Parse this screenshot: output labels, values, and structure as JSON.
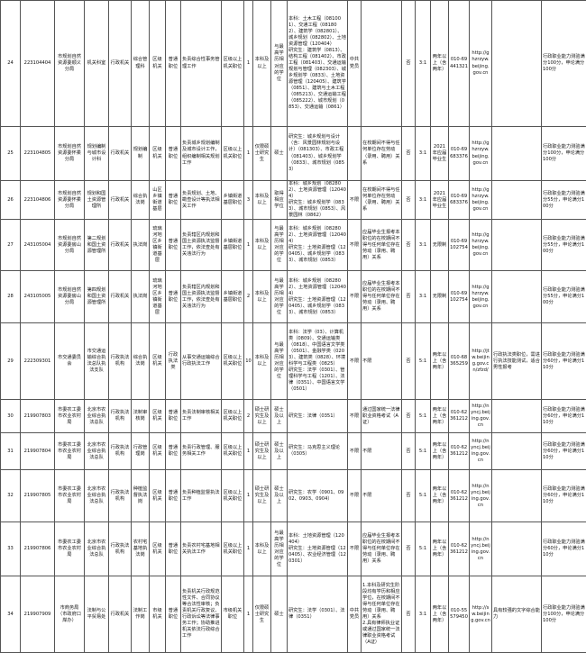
{
  "table": {
    "rows": [
      [
        "24",
        "223104404",
        "市规划自然资源委顺义分局",
        "机关科室",
        "行政机关",
        "综合管理科",
        "区级机关",
        "普通职位",
        "负责综合性事务管理工作",
        "区级以上机关职位",
        "1",
        "本科及以上",
        "与最高学历相对应的学位",
        "本科：土木工程（081001）、交通工程（081802）、建筑学（082801）、城乡规划（082802）、土地资源管理（120404）\n研究生：建筑学（0813）、结构工程（081402）、市政工程（081403）、交通运输规划与管理（082303）、城乡规划学（0833）、土地资源管理（120405）、建筑学（0851）、建筑与土木工程（085213）、交通运输工程（085222）、城市规划（0853）、交通运输（0861）",
        "中共党员",
        "",
        "否",
        "3:1",
        "两年以上（含两年）",
        "010-69441321",
        "http://ghzrzyw.beijing.gov.cn",
        "",
        "行政职业能力测验满分100分，申论满分100分"
      ],
      [
        "25",
        "223104805",
        "市规划自然资源委怀柔分局",
        "规划编制与城市设计科",
        "行政机关",
        "规划编制",
        "区级机关",
        "普通职位",
        "负责城乡规划编制及城市设计工作，组织编制相关规划工作",
        "区级以上机关职位",
        "1",
        "仅限硕士研究生",
        "硕士",
        "研究生：城乡规划与设计（含：风景园林规划与设计）（081303）、市政工程（081403）、城乡规划学（0833）、城市规划（0853）",
        "",
        "在校期间不得与任何单位存在劳动（录用、聘用）关系",
        "否",
        "3:1",
        "2021年应届毕业生",
        "010-69683376",
        "http://ghzrzyw.beijing.gov.cn",
        "",
        "行政职业能力测验满分100分，申论满分100分"
      ],
      [
        "26",
        "223104806",
        "市规划自然资源委怀柔分局",
        "规划和国土资源管理所",
        "行政机关",
        "综合执法岗",
        "山区乡镇街道基层",
        "普通职位",
        "负责规划、土地、勘查设计等执法相关工作",
        "乡镇街道基层职位",
        "3",
        "本科及以上",
        "取得相应学位",
        "本科：城乡规划（082802）、土地资源管理（120404）\n研究生：城乡规划学（0833）、城市规划（0853）、风景园林（0862）",
        "不限",
        "在校期间不得与任何单位存在劳动（录用、聘用）关系",
        "否",
        "3:1",
        "2021年应届毕业生",
        "010-69683376",
        "http://ghzrzyw.beijing.gov.cn",
        "",
        "行政职业能力测验满分55分，申论满分100分"
      ],
      [
        "27",
        "243105004",
        "市规划自然资源委房山分局",
        "第二规划和国土资源管理所",
        "行政机关",
        "执法岗",
        "琉璃河地区乡镇街道基层",
        "普通职位",
        "负责辖区内规划和国土资源执法监督工作，依法查处有关违法行为",
        "乡镇街道基层职位",
        "1",
        "本科及以上",
        "与最高学历相对应的学位",
        "本科：城乡规划（082802）、土地资源管理（120404）\n研究生：土地资源管理（120405）、城乡规划学（0833）、城市规划（0853）",
        "不限",
        "应届毕业生报考本职位的在校期间不得与任何单位存在劳动（录用、聘用）关系",
        "否",
        "3:1",
        "无限制",
        "010-69102754",
        "http://ghzrzyw.beijing.gov.cn",
        "",
        "行政职业能力测验满分55分，申论满分100分"
      ],
      [
        "28",
        "243105005",
        "市规划自然资源委房山分局",
        "第四规划和国土资源管理所",
        "行政机关",
        "执法岗",
        "琉璃河地区乡镇街道基层",
        "普通职位",
        "负责辖区内规划和国土资源执法监督工作，依法查处有关违法行为",
        "乡镇街道基层职位",
        "2",
        "本科及以上",
        "与最高学历相对应的学位",
        "本科：城乡规划（082802）、土地资源管理（120404）\n研究生：土地资源管理（120405）、城乡规划学（0833）、城市规划（0853）",
        "不限",
        "应届毕业生报考本职位的在校期间不得与任何单位存在劳动（录用、聘用）关系",
        "否",
        "3:1",
        "无限制",
        "010-69102754",
        "http://ghzrzyw.beijing.gov.cn",
        "",
        "行政职业能力测验满分55分，申论满分100分"
      ],
      [
        "29",
        "222309301",
        "市交通委员会",
        "市交通运输综合执法总队执法支队",
        "行政执法机构",
        "综合执法岗",
        "区级机关",
        "行政执法类",
        "从事交通运输综合行政执法工作",
        "区级以上机关职位",
        "10",
        "本科及以上",
        "与最高学历相对应的学位",
        "本科：法学（03）、计算机类（0809）、交通运输类（0818）、中国语言文学类（0501）、金融学类（0203）、建筑类（0828）、环境科学与工程类（0825）\n研究生：法学（0301）、管理科学与工程（1201）、法律（0351）、中国语言文学（0501）",
        "不限",
        "不限",
        "否",
        "5:1",
        "两年以上（含两年）",
        "010-68365259",
        "http://jtw.beijing.gov.cn/zfzd/",
        "行政执法类职位，需进行执法技能测试，适合男性报考",
        "行政职业能力测验满分60分，申论满分110分"
      ],
      [
        "30",
        "219907803",
        "市委农工委市农业农村局",
        "北京市农业综合执法总队",
        "行政执法机构",
        "法制审核岗",
        "区级机关",
        "普通职位",
        "负责法制审核相关工作",
        "区级以上机关职位",
        "2",
        "硕士研究生及以上",
        "硕士及以上",
        "研究生：法律（0351）",
        "不限",
        "通过国家统一法律职业资格考试（A证）",
        "否",
        "5:1",
        "两年以上（含两年）",
        "010-62361212",
        "http://nyncj.beijing.gov.cn",
        "",
        "行政职业能力测验满分60分，申论满分110分"
      ],
      [
        "31",
        "219907804",
        "市委农工委市农业农村局",
        "北京市农业综合执法总队",
        "行政执法机构",
        "行政管理岗",
        "区级机关",
        "普通职位",
        "负责行政管理、服务相关工作",
        "区级以上机关职位",
        "1",
        "硕士研究生及以上",
        "硕士及以上",
        "研究生：马克思主义理论（0305）",
        "不限",
        "不限",
        "否",
        "5:1",
        "两年以上（含两年）",
        "010-62361212",
        "http://nyncj.beijing.gov.cn",
        "",
        "行政职业能力测验满分60分，申论满分110分"
      ],
      [
        "32",
        "219907805",
        "市委农工委市农业农村局",
        "北京市农业综合执法总队",
        "行政执法机构",
        "种植监督执法岗",
        "区级机关",
        "普通职位",
        "负责种植监督执法工作",
        "区级以上机关职位",
        "1",
        "硕士研究生及以上",
        "硕士及以上",
        "研究生：农学（0901、0902、0903、0904）",
        "不限",
        "不限",
        "否",
        "5:1",
        "两年以上（含两年）",
        "010-62361212",
        "http://nyncj.beijing.gov.cn",
        "",
        "行政职业能力测验满分60分，申论满分110分"
      ],
      [
        "33",
        "219907806",
        "市委农工委市农业农村局",
        "北京市农业综合执法总队",
        "行政执法机构",
        "农村宅基地执法岗",
        "区级机关",
        "普通职位",
        "负责农村宅基地相关执法工作",
        "区级以上机关职位",
        "1",
        "本科及以上",
        "与最高学历相对应的学位",
        "本科：土地资源管理（120404）\n研究生：土地资源管理（120405）、农业经济管理（120301）",
        "不限",
        "应届毕业生报考本职位的在校期间不得与任何单位存在劳动（录用、聘用）关系",
        "否",
        "5:1",
        "两年以上（含两年）",
        "010-62361212",
        "http://nyncj.beijing.gov.cn",
        "",
        "行政职业能力测验满分60分，申论满分110分"
      ],
      [
        "34",
        "219907909",
        "市商务局（市政府口岸办）",
        "法制与公平贸易处",
        "行政机关",
        "法制工作岗",
        "市级机关",
        "普通职位",
        "负责机关行政规范性文件、合同协议等合法性审核；负责机关行政复议、行政诉讼等法律事务工作；协助推进机关依法行政综合工作",
        "市级机关职位",
        "1",
        "仅限硕士研究生",
        "硕士",
        "研究生：法学（0301）、法律（0351）",
        "中共党员",
        "1.本科及研究生阶段均有学历和相应学位，在校期间不得与任何单位存在劳动（录用、聘用）关系\n2.具有律师执业证或通过国家统一法律职业资格考试（A证）",
        "否",
        "3:1",
        "两年以上（含两年）",
        "010-55579450",
        "http://sw.beijing.gov.cn",
        "具有较强的文字综合能力",
        "行政职业能力测验满分100分，申论满分100分"
      ]
    ]
  }
}
